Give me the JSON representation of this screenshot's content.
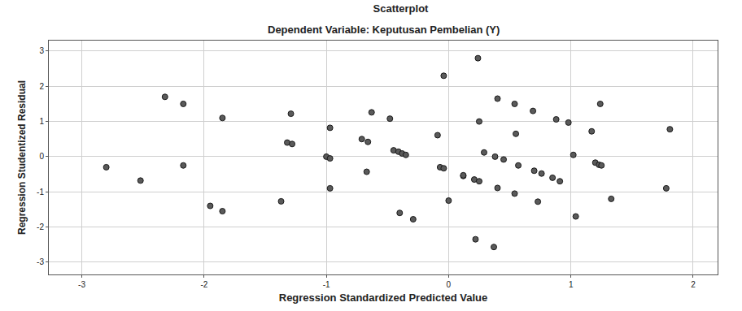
{
  "chart_data": {
    "type": "scatter",
    "title": "Scatterplot",
    "subtitle": "Dependent Variable: Keputusan Pembelian (Y)",
    "x_label": "Regression Standardized Predicted Value",
    "y_label": "Regression Studentized Residual",
    "x": [
      -2.8,
      -2.52,
      -2.32,
      -2.17,
      -2.17,
      -1.95,
      -1.85,
      -1.85,
      -1.37,
      -1.32,
      -1.29,
      -1.28,
      -1.0,
      -0.97,
      -0.97,
      -0.97,
      -0.71,
      -0.66,
      -0.67,
      -0.63,
      -0.48,
      -0.45,
      -0.41,
      -0.38,
      -0.35,
      -0.4,
      -0.29,
      -0.09,
      -0.07,
      -0.04,
      -0.04,
      0.0,
      0.12,
      0.12,
      0.21,
      0.25,
      0.22,
      0.24,
      0.25,
      0.29,
      0.38,
      0.37,
      0.4,
      0.4,
      0.45,
      0.54,
      0.55,
      0.54,
      0.57,
      0.69,
      0.7,
      0.73,
      0.76,
      0.85,
      0.88,
      0.91,
      0.98,
      1.02,
      1.04,
      1.17,
      1.2,
      1.24,
      1.23,
      1.25,
      1.33,
      1.78,
      1.81
    ],
    "values": [
      -0.3,
      -0.68,
      1.7,
      1.5,
      -0.25,
      -1.4,
      1.1,
      -1.55,
      -1.27,
      0.4,
      1.22,
      0.36,
      0.0,
      0.82,
      -0.05,
      -0.9,
      0.5,
      0.42,
      -0.43,
      1.26,
      1.08,
      0.18,
      0.14,
      0.09,
      0.05,
      -1.6,
      -1.78,
      0.61,
      -0.3,
      -0.33,
      2.3,
      -1.25,
      -0.55,
      -0.53,
      -0.65,
      -0.7,
      -2.35,
      2.8,
      1.0,
      0.12,
      0.0,
      -2.57,
      1.65,
      -0.89,
      -0.08,
      1.5,
      0.65,
      -1.05,
      -0.25,
      1.3,
      -0.4,
      -1.28,
      -0.48,
      -0.6,
      1.06,
      -0.7,
      0.97,
      0.05,
      -1.7,
      0.72,
      -0.17,
      1.5,
      -0.23,
      -0.25,
      -1.2,
      -0.9,
      0.78
    ],
    "color": "#5a5a5a",
    "marker": "circle",
    "xlim": [
      -3.27,
      2.2
    ],
    "ylim": [
      -3.35,
      3.3
    ],
    "xticks": [
      -3,
      -2,
      -1,
      0,
      1,
      2
    ],
    "yticks": [
      -3,
      -2,
      -1,
      0,
      1,
      2,
      3
    ],
    "grid": true
  }
}
